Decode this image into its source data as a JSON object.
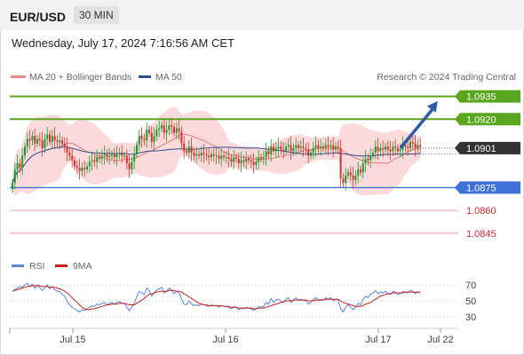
{
  "header": {
    "pair": "EUR/USD",
    "timeframe": "30 MIN",
    "datetime": "Wednesday, July 17, 2024 7:16:56 AM CET"
  },
  "legend": {
    "ma20": "MA 20 + Bollinger Bands",
    "ma50": "MA 50",
    "credit": "Research © 2024 Trading Central",
    "rsi": "RSI",
    "rsi_ma": "9MA"
  },
  "colors": {
    "candle_up": "#1c9b2d",
    "candle_down": "#d83030",
    "bollinger_band": "#fadada",
    "ma20": "#e87a7a",
    "ma50": "#2d4e96",
    "resistance": "#5aa61e",
    "support": "#3f72d9",
    "lower_level": "#e27c7c",
    "current": "#333333",
    "rsi": "#5a84d8",
    "rsi_ma": "#cc1f1f"
  },
  "chart_data": [
    {
      "type": "candlestick",
      "x_labels": [
        "Jul 15",
        "Jul 16",
        "Jul 17",
        "Jul 22"
      ],
      "ylim": [
        1.0835,
        1.094
      ],
      "current_price": "1.0901",
      "levels": [
        {
          "label": "1.0935",
          "value": 1.0935,
          "kind": "resistance"
        },
        {
          "label": "1.0920",
          "value": 1.092,
          "kind": "resistance"
        },
        {
          "label": "1.0901",
          "value": 1.0901,
          "kind": "current"
        },
        {
          "label": "1.0875",
          "value": 1.0875,
          "kind": "support"
        },
        {
          "label": "1.0860",
          "value": 1.086,
          "kind": "level"
        },
        {
          "label": "1.0845",
          "value": 1.0845,
          "kind": "level"
        }
      ],
      "projection": {
        "from": [
          156,
          1.0901
        ],
        "to": [
          171,
          1.0932
        ]
      },
      "closes": [
        1.0878,
        1.0887,
        1.0891,
        1.0888,
        1.0896,
        1.0902,
        1.0907,
        1.0906,
        1.0909,
        1.0904,
        1.0907,
        1.0906,
        1.0901,
        1.0907,
        1.091,
        1.0905,
        1.0909,
        1.0906,
        1.0905,
        1.0906,
        1.0904,
        1.0902,
        1.0898,
        1.0896,
        1.0893,
        1.0889,
        1.0888,
        1.0886,
        1.0888,
        1.0887,
        1.0889,
        1.0892,
        1.0893,
        1.0892,
        1.0895,
        1.0894,
        1.0896,
        1.0897,
        1.0895,
        1.0896,
        1.0897,
        1.0895,
        1.0897,
        1.0898,
        1.0896,
        1.0896,
        1.0891,
        1.0887,
        1.0892,
        1.0897,
        1.0903,
        1.0909,
        1.0907,
        1.0906,
        1.0913,
        1.0911,
        1.0905,
        1.0909,
        1.0913,
        1.0914,
        1.0916,
        1.0911,
        1.0913,
        1.0916,
        1.0915,
        1.0911,
        1.0914,
        1.0912,
        1.0904,
        1.0899,
        1.0898,
        1.0902,
        1.0898,
        1.0896,
        1.0897,
        1.0896,
        1.0898,
        1.0897,
        1.0896,
        1.0895,
        1.0897,
        1.0896,
        1.0896,
        1.0894,
        1.0896,
        1.0895,
        1.0895,
        1.0894,
        1.0892,
        1.0895,
        1.0894,
        1.0891,
        1.0893,
        1.0892,
        1.0894,
        1.0893,
        1.0892,
        1.089,
        1.0892,
        1.0895,
        1.0894,
        1.0895,
        1.0899,
        1.0897,
        1.0902,
        1.0899,
        1.0901,
        1.0902,
        1.09,
        1.0899,
        1.0902,
        1.0903,
        1.0899,
        1.0901,
        1.0903,
        1.0901,
        1.0902,
        1.0901,
        1.09,
        1.0896,
        1.0898,
        1.0901,
        1.0903,
        1.0901,
        1.0902,
        1.0901,
        1.0903,
        1.0902,
        1.0903,
        1.09,
        1.0902,
        1.0901,
        1.0881,
        1.0878,
        1.0883,
        1.0885,
        1.0883,
        1.088,
        1.0883,
        1.0887,
        1.0885,
        1.0891,
        1.0894,
        1.0893,
        1.0896,
        1.0898,
        1.0902,
        1.0899,
        1.0901,
        1.09,
        1.0902,
        1.09,
        1.0899,
        1.0902,
        1.0901,
        1.0899,
        1.09,
        1.0903,
        1.0902,
        1.0901,
        1.0905,
        1.0904,
        1.0901,
        1.0903,
        1.0902
      ],
      "y_tick_labels": [
        "1.0935",
        "1.0920",
        "1.0901",
        "1.0875",
        "1.0860",
        "1.0845"
      ]
    },
    {
      "type": "line",
      "title": "RSI",
      "series": [
        {
          "name": "RSI"
        },
        {
          "name": "9MA"
        }
      ],
      "ylim": [
        20,
        80
      ],
      "y_ticks": [
        70,
        50,
        30
      ],
      "rsi_values": [
        62,
        64,
        66,
        68,
        67,
        70,
        72,
        68,
        71,
        66,
        69,
        67,
        63,
        66,
        70,
        65,
        68,
        64,
        62,
        62,
        58,
        56,
        50,
        45,
        42,
        40,
        38,
        36,
        39,
        38,
        40,
        42,
        44,
        43,
        46,
        45,
        47,
        48,
        45,
        47,
        48,
        46,
        48,
        49,
        47,
        47,
        42,
        38,
        42,
        47,
        55,
        62,
        60,
        58,
        66,
        63,
        56,
        60,
        64,
        65,
        67,
        60,
        62,
        66,
        64,
        59,
        62,
        60,
        52,
        46,
        45,
        50,
        46,
        44,
        45,
        44,
        46,
        45,
        44,
        43,
        45,
        44,
        44,
        42,
        44,
        43,
        43,
        42,
        40,
        43,
        42,
        39,
        41,
        40,
        42,
        41,
        40,
        38,
        40,
        43,
        42,
        43,
        48,
        46,
        53,
        48,
        51,
        52,
        49,
        48,
        52,
        54,
        48,
        51,
        54,
        51,
        52,
        51,
        50,
        46,
        48,
        52,
        54,
        51,
        52,
        51,
        54,
        52,
        54,
        50,
        52,
        51,
        40,
        36,
        42,
        45,
        42,
        39,
        42,
        47,
        45,
        52,
        56,
        54,
        58,
        60,
        63,
        59,
        61,
        60,
        62,
        59,
        58,
        62,
        61,
        58,
        59,
        62,
        61,
        60,
        63,
        62,
        59,
        61,
        60
      ],
      "ma_values": [
        62,
        63,
        64,
        65,
        66,
        67,
        68,
        68,
        69,
        69,
        69,
        69,
        68,
        68,
        68,
        67,
        67,
        67,
        66,
        65,
        64,
        62,
        60,
        57,
        54,
        51,
        48,
        45,
        42,
        40,
        39,
        39,
        40,
        40,
        41,
        42,
        43,
        44,
        45,
        45,
        46,
        46,
        46,
        47,
        47,
        47,
        46,
        45,
        45,
        45,
        47,
        49,
        51,
        53,
        56,
        58,
        59,
        60,
        61,
        62,
        62,
        62,
        62,
        63,
        63,
        63,
        62,
        62,
        61,
        59,
        57,
        55,
        53,
        51,
        49,
        47,
        46,
        45,
        45,
        44,
        44,
        44,
        44,
        44,
        44,
        43,
        43,
        43,
        42,
        42,
        42,
        41,
        41,
        41,
        41,
        41,
        41,
        40,
        40,
        41,
        41,
        41,
        42,
        43,
        44,
        45,
        46,
        47,
        48,
        49,
        50,
        50,
        50,
        51,
        51,
        51,
        51,
        51,
        51,
        50,
        50,
        50,
        51,
        51,
        51,
        51,
        52,
        52,
        52,
        52,
        52,
        52,
        50,
        48,
        47,
        46,
        45,
        44,
        43,
        43,
        43,
        44,
        46,
        47,
        48,
        50,
        52,
        54,
        56,
        57,
        58,
        59,
        59,
        60,
        60,
        60,
        60,
        60,
        61,
        61,
        61,
        61,
        61,
        61,
        61
      ]
    }
  ]
}
